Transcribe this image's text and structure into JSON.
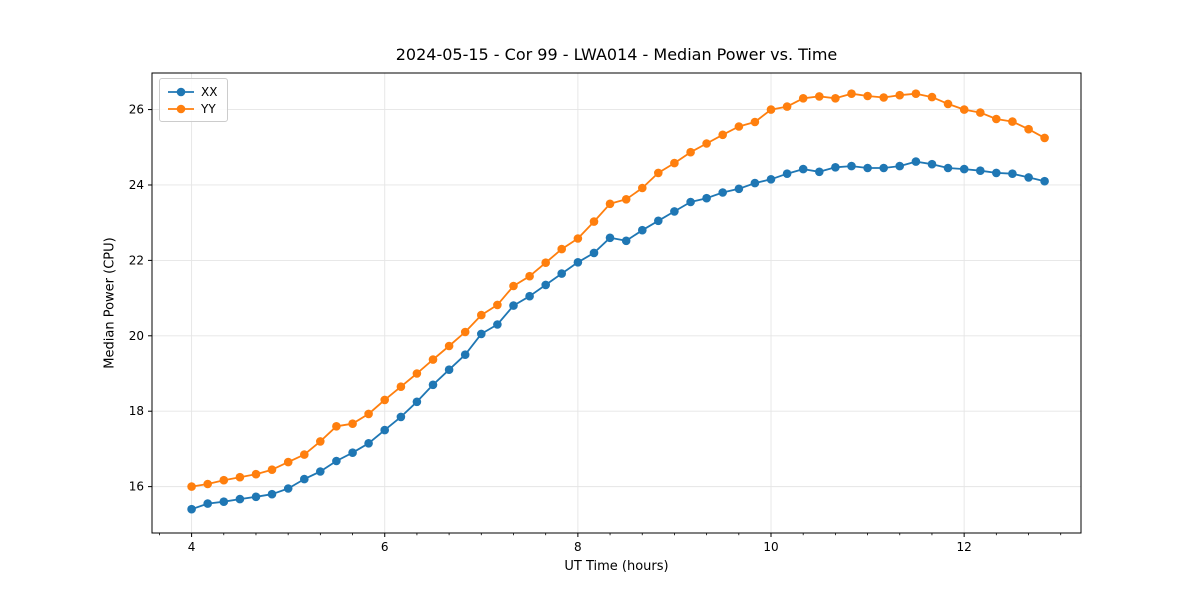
{
  "chart_data": {
    "type": "line",
    "title": "2024-05-15 - Cor 99 - LWA014 - Median Power vs. Time",
    "xlabel": "UT Time (hours)",
    "ylabel": "Median Power (CPU)",
    "xlim": [
      3.59,
      13.21
    ],
    "ylim": [
      14.77,
      26.97
    ],
    "x_ticks": [
      4,
      6,
      8,
      10,
      12
    ],
    "x_minor_tick_step": 0.33333,
    "y_ticks": [
      16,
      18,
      20,
      22,
      24,
      26
    ],
    "grid": true,
    "legend_position": "upper left",
    "x": [
      4.0,
      4.167,
      4.333,
      4.5,
      4.667,
      4.833,
      5.0,
      5.167,
      5.333,
      5.5,
      5.667,
      5.833,
      6.0,
      6.167,
      6.333,
      6.5,
      6.667,
      6.833,
      7.0,
      7.167,
      7.333,
      7.5,
      7.667,
      7.833,
      8.0,
      8.167,
      8.333,
      8.5,
      8.667,
      8.833,
      9.0,
      9.167,
      9.333,
      9.5,
      9.667,
      9.833,
      10.0,
      10.167,
      10.333,
      10.5,
      10.667,
      10.833,
      11.0,
      11.167,
      11.333,
      11.5,
      11.667,
      11.833,
      12.0,
      12.167,
      12.333,
      12.5,
      12.667,
      12.833
    ],
    "series": [
      {
        "name": "XX",
        "color": "#1f77b4",
        "values": [
          15.4,
          15.55,
          15.6,
          15.67,
          15.73,
          15.8,
          15.95,
          16.2,
          16.4,
          16.68,
          16.9,
          17.15,
          17.5,
          17.85,
          18.25,
          18.7,
          19.1,
          19.5,
          20.05,
          20.3,
          20.8,
          21.05,
          21.35,
          21.65,
          21.95,
          22.2,
          22.6,
          22.52,
          22.8,
          23.05,
          23.3,
          23.55,
          23.65,
          23.8,
          23.9,
          24.05,
          24.15,
          24.3,
          24.42,
          24.35,
          24.47,
          24.5,
          24.45,
          24.45,
          24.5,
          24.62,
          24.55,
          24.45,
          24.42,
          24.38,
          24.32,
          24.3,
          24.2,
          24.1
        ]
      },
      {
        "name": "YY",
        "color": "#ff7f0e",
        "values": [
          16.0,
          16.07,
          16.17,
          16.25,
          16.33,
          16.45,
          16.65,
          16.85,
          17.2,
          17.6,
          17.67,
          17.93,
          18.3,
          18.65,
          19.0,
          19.37,
          19.73,
          20.1,
          20.55,
          20.82,
          21.32,
          21.58,
          21.94,
          22.3,
          22.58,
          23.03,
          23.5,
          23.62,
          23.92,
          24.32,
          24.58,
          24.87,
          25.1,
          25.33,
          25.55,
          25.67,
          26.0,
          26.08,
          26.3,
          26.35,
          26.3,
          26.42,
          26.36,
          26.32,
          26.38,
          26.42,
          26.33,
          26.15,
          26.0,
          25.92,
          25.75,
          25.68,
          25.48,
          25.25
        ]
      }
    ],
    "style": {
      "grid_color": "#e5e5e5",
      "spine_color": "#000000",
      "tick_color": "#000000",
      "marker_radius": 4.3,
      "line_width": 1.8
    }
  }
}
